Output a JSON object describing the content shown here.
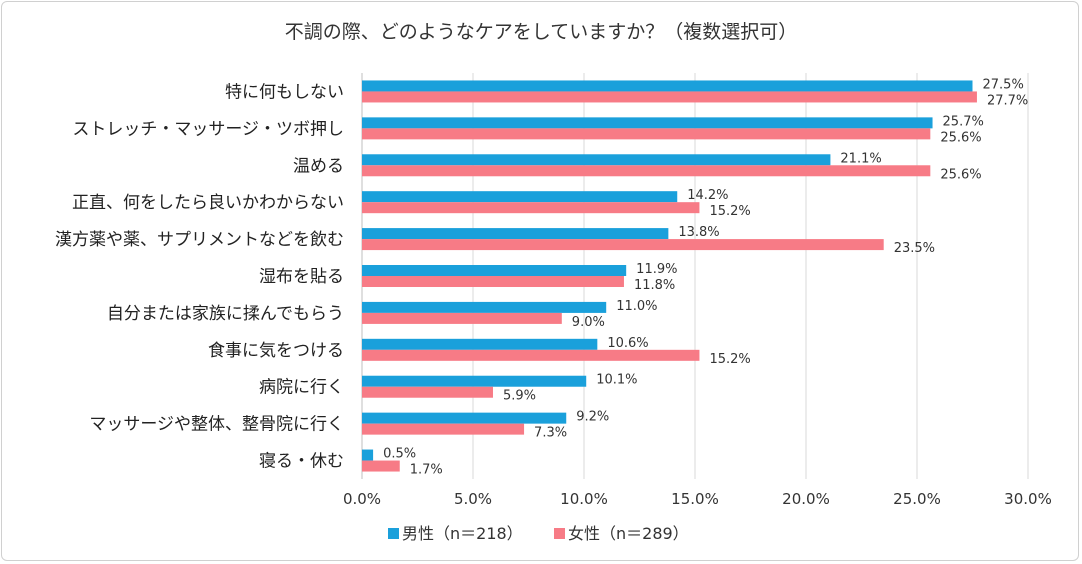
{
  "chart_data": {
    "type": "bar",
    "orientation": "horizontal",
    "title": "不調の際、どのようなケアをしていますか？（複数選択可）",
    "categories": [
      "特に何もしない",
      "ストレッチ・マッサージ・ツボ押し",
      "温める",
      "正直、何をしたら良いかわからない",
      "漢方薬や薬、サプリメントなどを飲む",
      "湿布を貼る",
      "自分または家族に揉んでもらう",
      "食事に気をつける",
      "病院に行く",
      "マッサージや整体、整骨院に行く",
      "寝る・休む"
    ],
    "series": [
      {
        "name": "男性（n＝218）",
        "color": "#1aa0db",
        "values": [
          27.5,
          25.7,
          21.1,
          14.2,
          13.8,
          11.9,
          11.0,
          10.6,
          10.1,
          9.2,
          0.5
        ],
        "labels": [
          "27.5%",
          "25.7%",
          "21.1%",
          "14.2%",
          "13.8%",
          "11.9%",
          "11.0%",
          "10.6%",
          "10.1%",
          "9.2%",
          "0.5%"
        ]
      },
      {
        "name": "女性（n＝289）",
        "color": "#f77b86",
        "values": [
          27.7,
          25.6,
          25.6,
          15.2,
          23.5,
          11.8,
          9.0,
          15.2,
          5.9,
          7.3,
          1.7
        ],
        "labels": [
          "27.7%",
          "25.6%",
          "25.6%",
          "15.2%",
          "23.5%",
          "11.8%",
          "9.0%",
          "15.2%",
          "5.9%",
          "7.3%",
          "1.7%"
        ]
      }
    ],
    "xlim": [
      0,
      30
    ],
    "ticks": [
      0,
      5,
      10,
      15,
      20,
      25,
      30
    ],
    "tick_labels": [
      "0.0%",
      "5.0%",
      "10.0%",
      "15.0%",
      "20.0%",
      "25.0%",
      "30.0%"
    ],
    "grid": true,
    "legend": "bottom"
  }
}
